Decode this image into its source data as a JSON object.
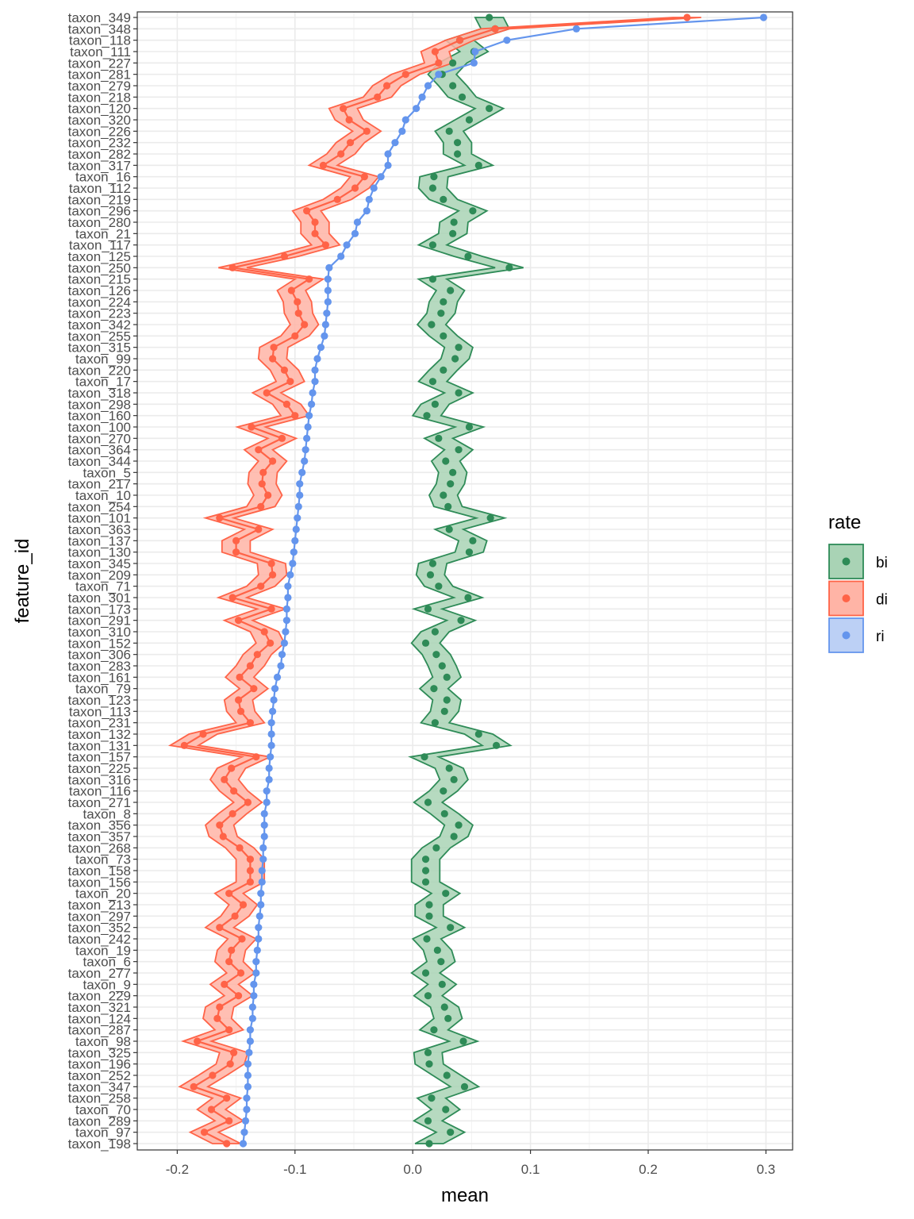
{
  "chart_data": {
    "type": "line",
    "title": "",
    "xlabel": "mean",
    "ylabel": "feature_id",
    "xlim": [
      -0.235,
      0.322
    ],
    "x_ticks": [
      -0.2,
      -0.1,
      0.0,
      0.1,
      0.2,
      0.3
    ],
    "x_tick_labels": [
      "-0.2",
      "-0.1",
      "0.0",
      "0.1",
      "0.2",
      "0.3"
    ],
    "grid": true,
    "legend": {
      "title": "rate",
      "position": "right",
      "entries": [
        "bi",
        "di",
        "ri"
      ]
    },
    "ribbon_halfwidth": 0.012,
    "categories": [
      "taxon_349",
      "taxon_348",
      "taxon_118",
      "taxon_111",
      "taxon_227",
      "taxon_281",
      "taxon_279",
      "taxon_218",
      "taxon_120",
      "taxon_320",
      "taxon_226",
      "taxon_232",
      "taxon_282",
      "taxon_317",
      "taxon_16",
      "taxon_112",
      "taxon_219",
      "taxon_296",
      "taxon_280",
      "taxon_21",
      "taxon_117",
      "taxon_125",
      "taxon_250",
      "taxon_215",
      "taxon_126",
      "taxon_224",
      "taxon_223",
      "taxon_342",
      "taxon_255",
      "taxon_315",
      "taxon_99",
      "taxon_220",
      "taxon_17",
      "taxon_318",
      "taxon_298",
      "taxon_160",
      "taxon_100",
      "taxon_270",
      "taxon_364",
      "taxon_344",
      "taxon_5",
      "taxon_217",
      "taxon_10",
      "taxon_254",
      "taxon_101",
      "taxon_363",
      "taxon_137",
      "taxon_130",
      "taxon_345",
      "taxon_209",
      "taxon_71",
      "taxon_301",
      "taxon_173",
      "taxon_291",
      "taxon_310",
      "taxon_152",
      "taxon_306",
      "taxon_283",
      "taxon_161",
      "taxon_79",
      "taxon_123",
      "taxon_113",
      "taxon_231",
      "taxon_132",
      "taxon_131",
      "taxon_157",
      "taxon_225",
      "taxon_316",
      "taxon_116",
      "taxon_271",
      "taxon_8",
      "taxon_356",
      "taxon_357",
      "taxon_268",
      "taxon_73",
      "taxon_158",
      "taxon_156",
      "taxon_20",
      "taxon_213",
      "taxon_297",
      "taxon_352",
      "taxon_242",
      "taxon_19",
      "taxon_6",
      "taxon_277",
      "taxon_9",
      "taxon_229",
      "taxon_321",
      "taxon_124",
      "taxon_287",
      "taxon_98",
      "taxon_325",
      "taxon_196",
      "taxon_252",
      "taxon_347",
      "taxon_258",
      "taxon_70",
      "taxon_289",
      "taxon_97",
      "taxon_198"
    ],
    "series": [
      {
        "name": "bi",
        "color": "#2e8b57",
        "fill": "#a9d3b5",
        "line": false,
        "ribbon": true,
        "values": [
          0.065,
          0.07,
          0.04,
          0.052,
          0.034,
          0.025,
          0.034,
          0.042,
          0.065,
          0.048,
          0.031,
          0.038,
          0.038,
          0.056,
          0.018,
          0.017,
          0.026,
          0.051,
          0.035,
          0.034,
          0.017,
          0.047,
          0.082,
          0.017,
          0.032,
          0.026,
          0.024,
          0.016,
          0.026,
          0.039,
          0.036,
          0.026,
          0.017,
          0.039,
          0.019,
          0.012,
          0.048,
          0.022,
          0.039,
          0.028,
          0.034,
          0.032,
          0.026,
          0.03,
          0.066,
          0.031,
          0.051,
          0.048,
          0.017,
          0.015,
          0.022,
          0.047,
          0.013,
          0.041,
          0.019,
          0.011,
          0.02,
          0.025,
          0.029,
          0.018,
          0.029,
          0.027,
          0.019,
          0.056,
          0.071,
          0.01,
          0.031,
          0.035,
          0.026,
          0.013,
          0.027,
          0.039,
          0.035,
          0.02,
          0.011,
          0.011,
          0.011,
          0.028,
          0.014,
          0.014,
          0.032,
          0.012,
          0.021,
          0.024,
          0.011,
          0.025,
          0.013,
          0.027,
          0.03,
          0.018,
          0.043,
          0.013,
          0.014,
          0.029,
          0.044,
          0.016,
          0.028,
          0.013,
          0.032,
          0.014
        ]
      },
      {
        "name": "di",
        "color": "#ff6347",
        "fill": "#ffb4a6",
        "line": true,
        "ribbon": true,
        "values": [
          0.233,
          0.07,
          0.04,
          0.019,
          0.022,
          -0.006,
          -0.022,
          -0.03,
          -0.059,
          -0.054,
          -0.039,
          -0.053,
          -0.061,
          -0.076,
          -0.041,
          -0.049,
          -0.064,
          -0.09,
          -0.083,
          -0.083,
          -0.074,
          -0.109,
          -0.153,
          -0.088,
          -0.103,
          -0.098,
          -0.097,
          -0.092,
          -0.1,
          -0.118,
          -0.119,
          -0.109,
          -0.104,
          -0.124,
          -0.107,
          -0.1,
          -0.137,
          -0.111,
          -0.131,
          -0.119,
          -0.127,
          -0.128,
          -0.123,
          -0.129,
          -0.164,
          -0.131,
          -0.15,
          -0.15,
          -0.12,
          -0.119,
          -0.129,
          -0.153,
          -0.12,
          -0.148,
          -0.126,
          -0.121,
          -0.132,
          -0.138,
          -0.147,
          -0.135,
          -0.148,
          -0.146,
          -0.138,
          -0.178,
          -0.194,
          -0.133,
          -0.154,
          -0.16,
          -0.152,
          -0.14,
          -0.153,
          -0.164,
          -0.161,
          -0.147,
          -0.138,
          -0.138,
          -0.138,
          -0.156,
          -0.144,
          -0.151,
          -0.164,
          -0.145,
          -0.154,
          -0.156,
          -0.146,
          -0.16,
          -0.148,
          -0.164,
          -0.166,
          -0.156,
          -0.183,
          -0.152,
          -0.155,
          -0.17,
          -0.186,
          -0.158,
          -0.171,
          -0.156,
          -0.177,
          -0.158
        ]
      },
      {
        "name": "ri",
        "color": "#6495ed",
        "fill": "#bcd0f5",
        "line": true,
        "ribbon": false,
        "values": [
          0.298,
          0.139,
          0.08,
          0.053,
          0.052,
          0.022,
          0.013,
          0.008,
          0.003,
          -0.006,
          -0.009,
          -0.015,
          -0.021,
          -0.021,
          -0.027,
          -0.033,
          -0.037,
          -0.039,
          -0.047,
          -0.049,
          -0.056,
          -0.061,
          -0.071,
          -0.072,
          -0.072,
          -0.072,
          -0.073,
          -0.074,
          -0.075,
          -0.078,
          -0.081,
          -0.083,
          -0.083,
          -0.085,
          -0.086,
          -0.088,
          -0.089,
          -0.09,
          -0.091,
          -0.092,
          -0.094,
          -0.096,
          -0.096,
          -0.097,
          -0.098,
          -0.099,
          -0.1,
          -0.101,
          -0.102,
          -0.104,
          -0.106,
          -0.106,
          -0.107,
          -0.107,
          -0.108,
          -0.109,
          -0.111,
          -0.112,
          -0.115,
          -0.117,
          -0.118,
          -0.119,
          -0.12,
          -0.12,
          -0.12,
          -0.121,
          -0.122,
          -0.122,
          -0.124,
          -0.124,
          -0.126,
          -0.126,
          -0.126,
          -0.127,
          -0.127,
          -0.128,
          -0.128,
          -0.129,
          -0.129,
          -0.13,
          -0.131,
          -0.131,
          -0.132,
          -0.133,
          -0.133,
          -0.135,
          -0.135,
          -0.136,
          -0.136,
          -0.138,
          -0.138,
          -0.139,
          -0.14,
          -0.14,
          -0.14,
          -0.141,
          -0.141,
          -0.142,
          -0.143,
          -0.144
        ]
      }
    ]
  }
}
